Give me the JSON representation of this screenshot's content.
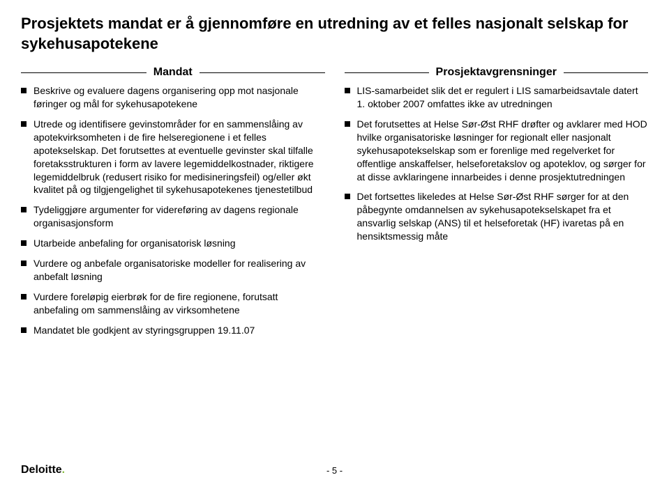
{
  "title": "Prosjektets mandat er å gjennomføre en utredning av et felles nasjonalt selskap for sykehusapotekene",
  "left": {
    "heading": "Mandat",
    "items": [
      "Beskrive og evaluere dagens organisering opp mot nasjonale føringer og mål for sykehusapotekene",
      "Utrede og identifisere gevinstområder for en sammenslåing av apotekvirksomheten i de fire helseregionene i et felles apotekselskap. Det forutsettes at eventuelle gevinster skal tilfalle foretaksstrukturen i form av lavere legemiddelkostnader, riktigere legemiddelbruk (redusert risiko for medisineringsfeil) og/eller økt kvalitet på og tilgjengelighet til sykehusapotekenes tjenestetilbud",
      "Tydeliggjøre argumenter for videreføring av dagens regionale organisasjonsform",
      "Utarbeide anbefaling for organisatorisk løsning",
      "Vurdere og anbefale organisatoriske modeller for realisering av anbefalt løsning",
      "Vurdere foreløpig eierbrøk for de fire regionene, forutsatt anbefaling om sammenslåing av virksomhetene",
      "Mandatet ble godkjent av styringsgruppen 19.11.07"
    ]
  },
  "right": {
    "heading": "Prosjektavgrensninger",
    "items": [
      "LIS-samarbeidet slik det er regulert i LIS samarbeidsavtale datert 1. oktober 2007 omfattes ikke av utredningen",
      "Det forutsettes at Helse Sør-Øst RHF drøfter og avklarer med HOD hvilke organisatoriske løsninger for regionalt eller nasjonalt sykehusapotekselskap som er forenlige med regelverket for offentlige anskaffelser, helseforetakslov og apoteklov, og sørger for at disse avklaringene innarbeides i denne prosjektutredningen",
      "Det fortsettes likeledes at Helse Sør-Øst RHF sørger for at den påbegynte omdannelsen av sykehusapotekselskapet fra et ansvarlig selskap (ANS) til et helseforetak (HF) ivaretas på en hensiktsmessig måte"
    ]
  },
  "footer": {
    "logo": "Deloitte",
    "page": "- 5 -"
  },
  "colors": {
    "text": "#000000",
    "bg": "#ffffff",
    "accent_green": "#86bc40"
  }
}
